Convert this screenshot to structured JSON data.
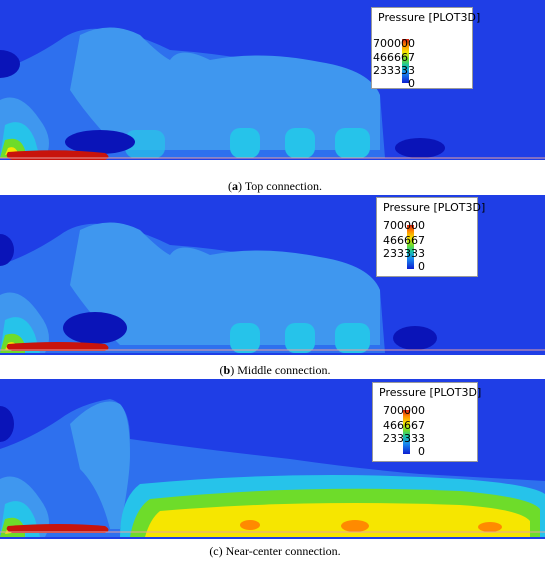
{
  "legend": {
    "title": "Pressure [PLOT3D]",
    "ticks": [
      "700000",
      "466667",
      "233333",
      "0"
    ]
  },
  "panels": [
    {
      "id": "a",
      "label": "a",
      "caption": "Top connection."
    },
    {
      "id": "b",
      "label": "b",
      "caption": "Middle connection."
    },
    {
      "id": "c",
      "label": "(c)",
      "caption": "Near-center connection."
    }
  ],
  "colors": {
    "background_field": "#1f3ee6",
    "low_region": "#2e70ee",
    "mid_region": "#3f97ef",
    "high_region": "#26c3ea",
    "deep_low": "#0a14b8",
    "hull": "#c8140c"
  }
}
